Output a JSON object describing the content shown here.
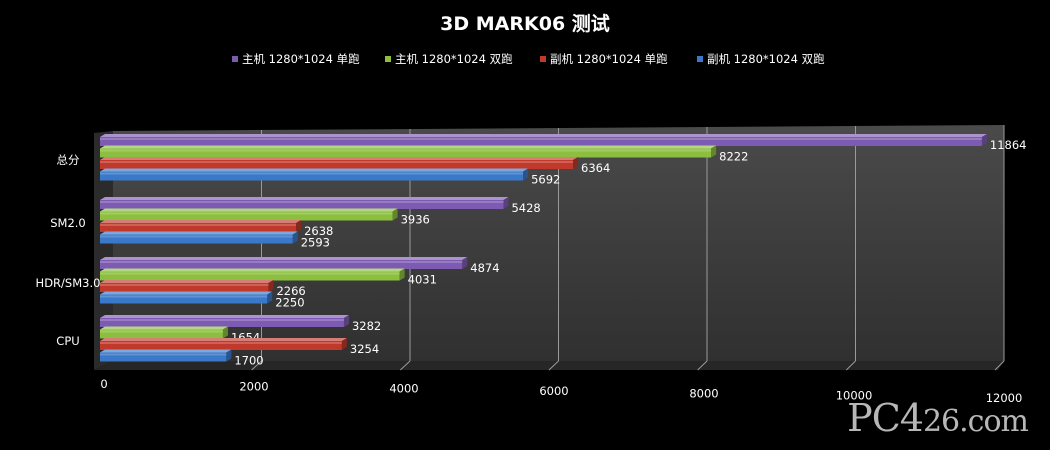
{
  "chart_data": {
    "type": "bar",
    "orientation": "horizontal",
    "style": "3d",
    "title": "3D MARK06 测试",
    "categories": [
      "总分",
      "SM2.0",
      "HDR/SM3.0",
      "CPU"
    ],
    "series": [
      {
        "name": "主机 1280*1024 单跑",
        "color": "#7e5bb3",
        "values": [
          11864,
          5428,
          4874,
          3282
        ]
      },
      {
        "name": "主机 1280*1024 双跑",
        "color": "#8cbf3f",
        "values": [
          8222,
          3936,
          4031,
          1654
        ]
      },
      {
        "name": "副机 1280*1024 单跑",
        "color": "#c0392b",
        "values": [
          6364,
          2638,
          2266,
          3254
        ]
      },
      {
        "name": "副机 1280*1024 双跑",
        "color": "#3a78c9",
        "values": [
          5692,
          2593,
          2250,
          1700
        ]
      }
    ],
    "xlim": [
      0,
      12000
    ],
    "xticks": [
      0,
      2000,
      4000,
      6000,
      8000,
      10000,
      12000
    ],
    "grid": true,
    "legend_position": "top",
    "colors": {
      "background": "#000000",
      "plot_wall": "#3f3f3f",
      "grid": "#9a9a9a"
    }
  },
  "watermark": {
    "main": "PC4",
    "tail": "26.com"
  }
}
